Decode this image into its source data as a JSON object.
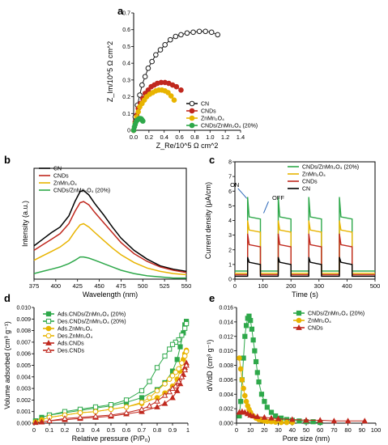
{
  "chart_data": [
    {
      "id": "a",
      "panel_label": "a",
      "type": "scatter",
      "title": "",
      "xlabel": "Z_Re/10^5 Ω cm^2",
      "ylabel": "Z_Im/10^5 Ω cm^2",
      "xlim": [
        0,
        1.4
      ],
      "ylim": [
        0,
        0.7
      ],
      "xticks": [
        "0.0",
        "0.2",
        "0.4",
        "0.6",
        "0.8",
        "1.0",
        "1.2",
        "1.4"
      ],
      "yticks": [
        "0",
        "0.1",
        "0.2",
        "0.3",
        "0.4",
        "0.5",
        "0.6",
        "0.7"
      ],
      "grid": false,
      "legend_position": "bottom-right",
      "series": [
        {
          "name": "CN",
          "color": "#1a1a1a",
          "marker": "circle-open",
          "x": [
            0.0,
            0.02,
            0.05,
            0.08,
            0.11,
            0.15,
            0.19,
            0.24,
            0.29,
            0.35,
            0.41,
            0.48,
            0.55,
            0.62,
            0.7,
            0.78,
            0.86,
            0.94,
            1.02,
            1.1
          ],
          "y": [
            0.0,
            0.08,
            0.15,
            0.21,
            0.27,
            0.32,
            0.37,
            0.41,
            0.45,
            0.48,
            0.51,
            0.54,
            0.56,
            0.57,
            0.58,
            0.585,
            0.59,
            0.59,
            0.585,
            0.57
          ]
        },
        {
          "name": "CNDs",
          "color": "#c0281e",
          "marker": "circle",
          "x": [
            0.0,
            0.02,
            0.04,
            0.06,
            0.09,
            0.12,
            0.15,
            0.19,
            0.23,
            0.27,
            0.31,
            0.36,
            0.41,
            0.46,
            0.51,
            0.56,
            0.62
          ],
          "y": [
            0.0,
            0.05,
            0.09,
            0.13,
            0.16,
            0.19,
            0.22,
            0.24,
            0.26,
            0.27,
            0.28,
            0.285,
            0.285,
            0.28,
            0.27,
            0.26,
            0.24
          ]
        },
        {
          "name": "ZnMn₂O₄",
          "color": "#e8b400",
          "marker": "circle",
          "x": [
            0.0,
            0.02,
            0.04,
            0.06,
            0.08,
            0.11,
            0.14,
            0.17,
            0.21,
            0.25,
            0.29,
            0.33,
            0.37,
            0.41,
            0.45,
            0.49,
            0.53
          ],
          "y": [
            0.0,
            0.04,
            0.08,
            0.11,
            0.14,
            0.16,
            0.18,
            0.2,
            0.215,
            0.225,
            0.235,
            0.24,
            0.24,
            0.235,
            0.225,
            0.205,
            0.18
          ]
        },
        {
          "name": "CNDs/ZnMn₂O₄ (20%)",
          "color": "#2ea84a",
          "marker": "circle",
          "x": [
            0.0,
            0.01,
            0.02,
            0.03,
            0.045,
            0.06,
            0.075,
            0.09,
            0.1,
            0.11,
            0.12
          ],
          "y": [
            0.0,
            0.02,
            0.035,
            0.05,
            0.06,
            0.065,
            0.07,
            0.07,
            0.068,
            0.062,
            0.055
          ]
        }
      ]
    },
    {
      "id": "b",
      "panel_label": "b",
      "type": "line",
      "title": "",
      "xlabel": "Wavelength (nm)",
      "ylabel": "Intensity (a.u.)",
      "xlim": [
        375,
        550
      ],
      "xticks": [
        "375",
        "400",
        "425",
        "450",
        "475",
        "500",
        "525",
        "550"
      ],
      "yticks": [],
      "grid": false,
      "legend_position": "top-left",
      "series": [
        {
          "name": "CN",
          "color": "#000000",
          "x": [
            375,
            385,
            395,
            405,
            415,
            422,
            428,
            432,
            438,
            445,
            455,
            465,
            475,
            490,
            505,
            520,
            535,
            550
          ],
          "y": [
            0.3,
            0.36,
            0.42,
            0.47,
            0.57,
            0.7,
            0.79,
            0.8,
            0.76,
            0.68,
            0.58,
            0.47,
            0.37,
            0.26,
            0.18,
            0.12,
            0.09,
            0.07
          ]
        },
        {
          "name": "CNDs",
          "color": "#c0281e",
          "x": [
            375,
            385,
            395,
            405,
            415,
            422,
            428,
            432,
            438,
            445,
            455,
            465,
            475,
            490,
            505,
            520,
            535,
            550
          ],
          "y": [
            0.26,
            0.31,
            0.36,
            0.41,
            0.5,
            0.61,
            0.69,
            0.7,
            0.67,
            0.6,
            0.51,
            0.42,
            0.33,
            0.23,
            0.16,
            0.11,
            0.08,
            0.06
          ]
        },
        {
          "name": "ZnMn₂O₄",
          "color": "#e8b400",
          "x": [
            375,
            385,
            395,
            405,
            415,
            422,
            428,
            432,
            438,
            445,
            455,
            465,
            475,
            490,
            505,
            520,
            535,
            550
          ],
          "y": [
            0.17,
            0.21,
            0.25,
            0.29,
            0.35,
            0.43,
            0.49,
            0.5,
            0.47,
            0.42,
            0.35,
            0.28,
            0.22,
            0.15,
            0.1,
            0.07,
            0.05,
            0.04
          ]
        },
        {
          "name": "CNDs/ZnMn₂O₄ (20%)",
          "color": "#2ea84a",
          "x": [
            375,
            385,
            395,
            405,
            415,
            422,
            428,
            432,
            438,
            445,
            455,
            465,
            475,
            490,
            505,
            520,
            535,
            550
          ],
          "y": [
            0.05,
            0.07,
            0.09,
            0.11,
            0.14,
            0.17,
            0.2,
            0.2,
            0.19,
            0.17,
            0.14,
            0.11,
            0.08,
            0.05,
            0.03,
            0.02,
            0.01,
            0.01
          ]
        }
      ]
    },
    {
      "id": "c",
      "panel_label": "c",
      "type": "line",
      "title": "",
      "xlabel": "Time (s)",
      "ylabel": "Current density (μA/cm)",
      "xlim": [
        0,
        550
      ],
      "ylim": [
        0,
        8
      ],
      "xticks": [
        "0",
        "100",
        "200",
        "300",
        "400",
        "500"
      ],
      "yticks": [
        "0",
        "1",
        "2",
        "3",
        "4",
        "5",
        "6",
        "7",
        "8"
      ],
      "grid": false,
      "legend_position": "top-right",
      "annotations": [
        "ON",
        "OFF"
      ],
      "on_periods": [
        [
          50,
          100
        ],
        [
          170,
          220
        ],
        [
          290,
          340
        ],
        [
          410,
          460
        ]
      ],
      "series": [
        {
          "name": "CNDs/ZnMn₂O₄ (20%)",
          "color": "#2ea84a",
          "off_level": 0.55,
          "on_peak": 5.6,
          "on_level": 4.1
        },
        {
          "name": "ZnMn₂O₄",
          "color": "#e8b400",
          "off_level": 0.4,
          "on_peak": 4.0,
          "on_level": 3.2
        },
        {
          "name": "CNDs",
          "color": "#c0281e",
          "off_level": 0.3,
          "on_peak": 3.1,
          "on_level": 2.2
        },
        {
          "name": "CN",
          "color": "#000000",
          "off_level": 0.2,
          "on_peak": 1.5,
          "on_level": 1.0
        }
      ]
    },
    {
      "id": "d",
      "panel_label": "d",
      "type": "line",
      "title": "",
      "xlabel": "Relative pressure (P/P₀)",
      "ylabel": "Volume adsorbed (cm³ g⁻¹)",
      "xlim": [
        0,
        1
      ],
      "ylim": [
        0,
        0.01
      ],
      "xticks": [
        "0",
        "0.1",
        "0.2",
        "0.3",
        "0.4",
        "0.5",
        "0.6",
        "0.7",
        "0.8",
        "0.9",
        "1"
      ],
      "yticks": [
        "0.000",
        "0.001",
        "0.002",
        "0.003",
        "0.004",
        "0.005",
        "0.006",
        "0.007",
        "0.008",
        "0.009",
        "0.010"
      ],
      "grid": false,
      "legend_position": "top-left",
      "series": [
        {
          "name": "Ads.CNDs/ZnMn₂O₄  (20%)",
          "color": "#2ea84a",
          "marker": "square",
          "x": [
            0.01,
            0.05,
            0.1,
            0.2,
            0.3,
            0.4,
            0.5,
            0.6,
            0.7,
            0.8,
            0.85,
            0.9,
            0.93,
            0.95,
            0.97,
            0.98,
            0.99
          ],
          "y": [
            0.0002,
            0.0005,
            0.0007,
            0.0009,
            0.0011,
            0.0013,
            0.0015,
            0.0018,
            0.0022,
            0.0029,
            0.0035,
            0.0045,
            0.0055,
            0.0066,
            0.0078,
            0.0085,
            0.0088
          ]
        },
        {
          "name": "Des.CNDs/ZnMn₂O₄  (20%)",
          "color": "#2ea84a",
          "marker": "square-open",
          "x": [
            0.99,
            0.98,
            0.96,
            0.94,
            0.92,
            0.9,
            0.88,
            0.85,
            0.8,
            0.75,
            0.7,
            0.6,
            0.5,
            0.4,
            0.3,
            0.2,
            0.1
          ],
          "y": [
            0.0086,
            0.0082,
            0.0076,
            0.0072,
            0.007,
            0.0068,
            0.0064,
            0.0058,
            0.0048,
            0.0036,
            0.0028,
            0.002,
            0.0016,
            0.0014,
            0.0012,
            0.001,
            0.0007
          ]
        },
        {
          "name": "Ads.ZnMn₂O₄",
          "color": "#e8b400",
          "marker": "circle",
          "x": [
            0.01,
            0.05,
            0.1,
            0.2,
            0.3,
            0.4,
            0.5,
            0.6,
            0.7,
            0.8,
            0.85,
            0.9,
            0.93,
            0.95,
            0.97,
            0.98,
            0.99
          ],
          "y": [
            0.0001,
            0.0003,
            0.0005,
            0.0007,
            0.0009,
            0.001,
            0.0012,
            0.0014,
            0.0017,
            0.0022,
            0.0026,
            0.0032,
            0.0038,
            0.0045,
            0.0055,
            0.006,
            0.0063
          ]
        },
        {
          "name": "Des.ZnMn₂O₄",
          "color": "#e8b400",
          "marker": "circle-open",
          "x": [
            0.99,
            0.98,
            0.96,
            0.94,
            0.92,
            0.9,
            0.88,
            0.85,
            0.8,
            0.75,
            0.7,
            0.6,
            0.5,
            0.4,
            0.3,
            0.2,
            0.1
          ],
          "y": [
            0.0062,
            0.0058,
            0.0052,
            0.0047,
            0.0044,
            0.0041,
            0.0038,
            0.0034,
            0.0028,
            0.0022,
            0.0018,
            0.0014,
            0.0012,
            0.001,
            0.0009,
            0.0007,
            0.0005
          ]
        },
        {
          "name": "Ads.CNDs",
          "color": "#c0281e",
          "marker": "triangle",
          "x": [
            0.01,
            0.05,
            0.1,
            0.2,
            0.3,
            0.4,
            0.5,
            0.6,
            0.7,
            0.8,
            0.85,
            0.9,
            0.93,
            0.95,
            0.97,
            0.98,
            0.99
          ],
          "y": [
            5e-05,
            0.0001,
            0.0002,
            0.0003,
            0.0004,
            0.0005,
            0.0006,
            0.0008,
            0.001,
            0.0014,
            0.0017,
            0.0022,
            0.0028,
            0.0034,
            0.0042,
            0.0048,
            0.0052
          ]
        },
        {
          "name": "Des.CNDs",
          "color": "#c0281e",
          "marker": "triangle-open",
          "x": [
            0.99,
            0.98,
            0.96,
            0.94,
            0.92,
            0.9,
            0.88,
            0.85,
            0.8,
            0.75,
            0.7,
            0.6,
            0.5,
            0.4,
            0.3,
            0.2,
            0.1
          ],
          "y": [
            0.005,
            0.0046,
            0.004,
            0.0036,
            0.0032,
            0.003,
            0.0027,
            0.0024,
            0.0019,
            0.0015,
            0.0012,
            0.0009,
            0.0007,
            0.0006,
            0.0005,
            0.0004,
            0.0002
          ]
        }
      ]
    },
    {
      "id": "e",
      "panel_label": "e",
      "type": "line",
      "title": "",
      "xlabel": "Pore size (nm)",
      "ylabel": "dV/dD (cm³ g⁻¹)",
      "xlim": [
        0,
        100
      ],
      "ylim": [
        0,
        0.016
      ],
      "xticks": [
        "0",
        "10",
        "20",
        "30",
        "40",
        "50",
        "60",
        "70",
        "80",
        "90",
        "100"
      ],
      "yticks": [
        "0.000",
        "0.002",
        "0.004",
        "0.006",
        "0.008",
        "0.010",
        "0.012",
        "0.014",
        "0.016"
      ],
      "grid": false,
      "legend_position": "top-right",
      "series": [
        {
          "name": "CNDs/ZnMn₂O₄  (20%)",
          "color": "#2ea84a",
          "marker": "square",
          "x": [
            2,
            3,
            4,
            5,
            6,
            7,
            8,
            9,
            10,
            11,
            12,
            13,
            14,
            15,
            16,
            18,
            20,
            22,
            25,
            28,
            32,
            36,
            40,
            45,
            50,
            55,
            60
          ],
          "y": [
            0.001,
            0.003,
            0.006,
            0.009,
            0.012,
            0.0135,
            0.0145,
            0.0148,
            0.0142,
            0.013,
            0.0115,
            0.01,
            0.0085,
            0.007,
            0.0057,
            0.004,
            0.003,
            0.0022,
            0.0015,
            0.001,
            0.0007,
            0.0005,
            0.0004,
            0.0003,
            0.0002,
            0.0002,
            0.0001
          ]
        },
        {
          "name": "ZnMn₂O₄",
          "color": "#e8b400",
          "marker": "circle",
          "x": [
            2,
            3,
            4,
            5,
            6,
            7,
            8,
            9,
            10,
            12,
            14,
            16,
            18,
            20,
            22,
            25,
            28,
            32,
            36,
            40
          ],
          "y": [
            0.009,
            0.0075,
            0.006,
            0.0048,
            0.0038,
            0.003,
            0.0024,
            0.0019,
            0.0015,
            0.001,
            0.0007,
            0.0005,
            0.0004,
            0.0003,
            0.00025,
            0.0002,
            0.00015,
            0.0001,
            0.0001,
            0.0001
          ]
        },
        {
          "name": "CNDs",
          "color": "#c0281e",
          "marker": "triangle",
          "x": [
            2,
            4,
            6,
            8,
            10,
            12,
            15,
            20,
            25,
            30,
            40,
            50,
            60,
            70,
            80,
            92
          ],
          "y": [
            0.0015,
            0.0016,
            0.0015,
            0.0013,
            0.0011,
            0.001,
            0.0009,
            0.0008,
            0.0007,
            0.0006,
            0.0005,
            0.0004,
            0.0004,
            0.0003,
            0.0003,
            0.0003
          ]
        }
      ]
    }
  ]
}
